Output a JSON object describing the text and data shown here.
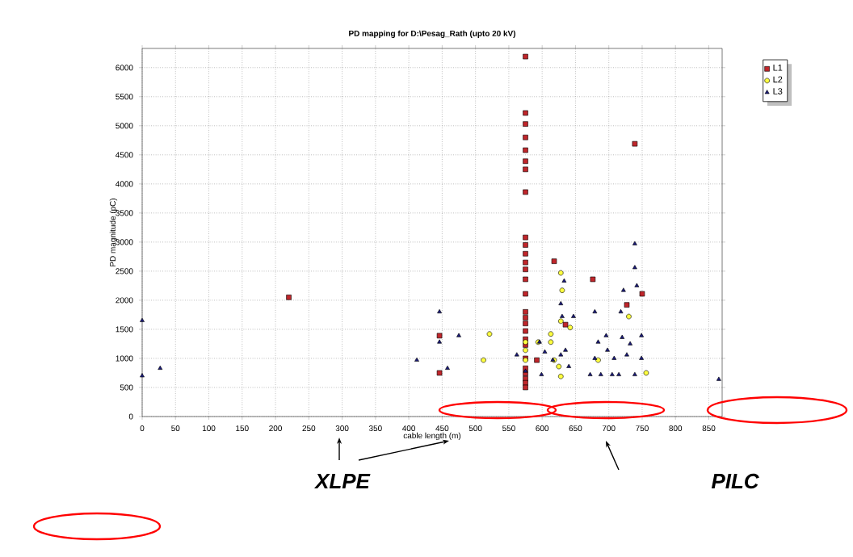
{
  "chart_data": {
    "type": "scatter",
    "title": "PD mapping for D:\\Pesag_Rath (upto 20 kV)",
    "xlabel": "cable length (m)",
    "ylabel": "PD magnitude (pC)",
    "xlim": [
      0,
      870
    ],
    "ylim": [
      0,
      6330
    ],
    "xticks": [
      0,
      50,
      100,
      150,
      200,
      250,
      300,
      350,
      400,
      450,
      500,
      550,
      600,
      650,
      700,
      750,
      800,
      850
    ],
    "yticks": [
      0,
      500,
      1000,
      1500,
      2000,
      2500,
      3000,
      3500,
      4000,
      4500,
      5000,
      5500,
      6000
    ],
    "grid": true,
    "legend": "top right",
    "annotations": [
      "XLPE",
      "PILC"
    ],
    "series": [
      {
        "name": "L1",
        "color": "#c0262b",
        "marker": "square",
        "x": [
          220,
          575,
          575,
          575,
          575,
          575,
          575,
          575,
          575,
          575,
          575,
          575,
          575,
          575,
          575,
          575,
          575,
          575,
          575,
          575,
          575,
          575,
          575,
          575,
          575,
          575,
          575,
          575,
          739,
          618,
          676,
          750,
          727,
          635,
          592,
          446,
          446
        ],
        "values": [
          2050,
          6190,
          5220,
          5030,
          4800,
          4580,
          4390,
          4250,
          3860,
          3080,
          2950,
          2800,
          2650,
          2530,
          2360,
          2110,
          1800,
          1700,
          1600,
          1470,
          1330,
          1230,
          830,
          740,
          650,
          580,
          500,
          1000,
          4690,
          2670,
          2360,
          2110,
          1920,
          1580,
          970,
          1390,
          750
        ]
      },
      {
        "name": "L2",
        "color": "#ffff40",
        "marker": "circle",
        "x": [
          521,
          512,
          575,
          575,
          575,
          594,
          613,
          613,
          630,
          628,
          642,
          628,
          618,
          625,
          684,
          730,
          756,
          628
        ],
        "values": [
          1420,
          970,
          1280,
          1140,
          970,
          1280,
          1420,
          1280,
          2170,
          1640,
          1530,
          690,
          970,
          860,
          970,
          1720,
          750,
          2470
        ]
      },
      {
        "name": "L3",
        "color": "#1a1a7a",
        "marker": "triangle",
        "x": [
          0,
          0,
          27,
          412,
          446,
          446,
          475,
          458,
          562,
          575,
          596,
          604,
          599,
          616,
          633,
          628,
          630,
          647,
          635,
          640,
          628,
          679,
          684,
          679,
          672,
          696,
          698,
          688,
          705,
          715,
          708,
          722,
          718,
          720,
          727,
          732,
          739,
          749,
          749,
          742,
          739,
          739,
          865
        ],
        "values": [
          1650,
          700,
          830,
          970,
          1800,
          1280,
          1390,
          830,
          1060,
          780,
          1280,
          1110,
          720,
          970,
          2330,
          1940,
          1720,
          1720,
          1140,
          860,
          1060,
          1800,
          1280,
          1000,
          720,
          1390,
          1140,
          720,
          720,
          720,
          1000,
          2170,
          1800,
          1360,
          1060,
          1250,
          720,
          1390,
          1000,
          2250,
          2970,
          2560,
          640
        ]
      }
    ]
  }
}
